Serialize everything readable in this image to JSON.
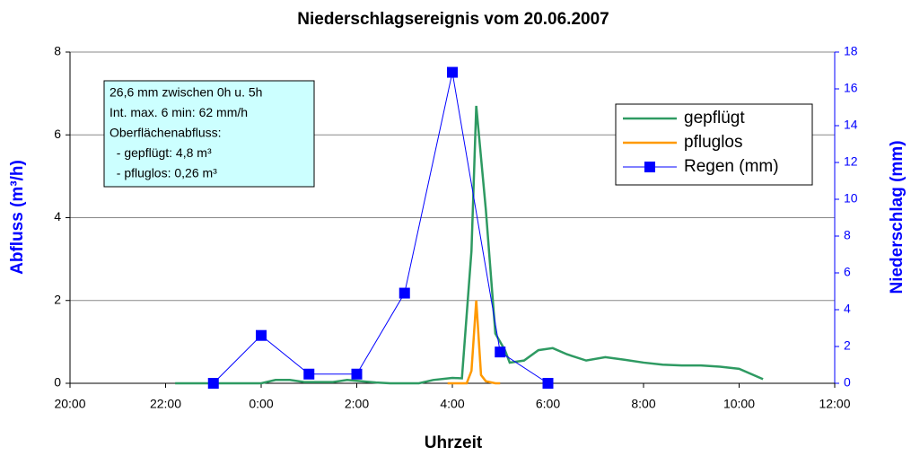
{
  "chart_data": {
    "type": "line",
    "title": "Niederschlagsereignis vom 20.06.2007",
    "xlabel": "Uhrzeit",
    "ylabel": "Abfluss (m³/h)",
    "y2label": "Niederschlag (mm)",
    "xlim": [
      20,
      36
    ],
    "xticks": [
      {
        "value": 20,
        "label": "20:00"
      },
      {
        "value": 22,
        "label": "22:00"
      },
      {
        "value": 24,
        "label": "0:00"
      },
      {
        "value": 26,
        "label": "2:00"
      },
      {
        "value": 28,
        "label": "4:00"
      },
      {
        "value": 30,
        "label": "6:00"
      },
      {
        "value": 32,
        "label": "8:00"
      },
      {
        "value": 34,
        "label": "10:00"
      },
      {
        "value": 36,
        "label": "12:00"
      }
    ],
    "ylim": [
      0,
      8
    ],
    "yticks": [
      0,
      2,
      4,
      6,
      8
    ],
    "y2lim": [
      0,
      18
    ],
    "y2ticks": [
      0,
      2,
      4,
      6,
      8,
      10,
      12,
      14,
      16,
      18
    ],
    "grid": true,
    "legend": "right",
    "annotation": [
      "26,6 mm zwischen 0h u. 5h",
      "Int. max. 6 min: 62 mm/h",
      "Oberflächenabfluss:",
      "  - gepflügt: 4,8 m³",
      "  - pfluglos: 0,26 m³"
    ],
    "series": [
      {
        "name": "gepflügt",
        "color": "#2e9a62",
        "x": [
          22.2,
          24.0,
          24.3,
          24.6,
          24.9,
          25.2,
          25.5,
          25.8,
          26.1,
          26.4,
          26.7,
          27.3,
          27.6,
          28.0,
          28.2,
          28.4,
          28.5,
          28.7,
          28.9,
          29.1,
          29.2,
          29.5,
          29.8,
          30.1,
          30.4,
          30.8,
          31.2,
          31.6,
          32.0,
          32.4,
          32.8,
          33.2,
          33.6,
          34.0,
          34.5
        ],
        "values": [
          0,
          0,
          0.08,
          0.08,
          0.03,
          0.03,
          0.03,
          0.08,
          0.05,
          0.02,
          0,
          0,
          0.08,
          0.13,
          0.12,
          3.2,
          6.7,
          4.2,
          1.2,
          0.8,
          0.5,
          0.55,
          0.8,
          0.85,
          0.7,
          0.55,
          0.63,
          0.57,
          0.5,
          0.45,
          0.43,
          0.43,
          0.4,
          0.35,
          0.1
        ]
      },
      {
        "name": "pfluglos",
        "color": "#ff9900",
        "x": [
          27.9,
          28.3,
          28.4,
          28.5,
          28.6,
          28.7,
          28.9,
          29.0
        ],
        "values": [
          0,
          0,
          0.3,
          2.0,
          0.2,
          0.05,
          0,
          0
        ]
      },
      {
        "name": "Regen (mm)",
        "color": "#0000ff",
        "axis": "y2",
        "marker": "square",
        "x": [
          23,
          24,
          25,
          26,
          27,
          28,
          29,
          30
        ],
        "values": [
          0,
          2.6,
          0.5,
          0.5,
          4.9,
          16.9,
          1.7,
          0
        ]
      }
    ]
  }
}
